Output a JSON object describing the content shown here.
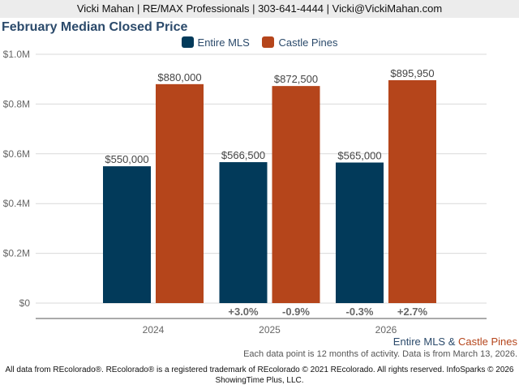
{
  "header": {
    "contact_line": "Vicki Mahan | RE/MAX Professionals | 303-641-4444 | Vicki@VickiMahan.com"
  },
  "colors": {
    "entire_mls": "#023a5a",
    "castle_pines": "#b5451b",
    "title": "#2b4a6b",
    "grid": "#d9d9d9",
    "axis_text": "#666666",
    "data_label": "#444444",
    "change_label": "#666666"
  },
  "chart_data": {
    "type": "bar",
    "title": "February Median Closed Price",
    "xlabel": "",
    "ylabel": "",
    "categories": [
      "2024",
      "2025",
      "2026"
    ],
    "ylim": [
      0,
      1000000
    ],
    "yticks": [
      {
        "value": 0,
        "label": "$0"
      },
      {
        "value": 200000,
        "label": "$0.2M"
      },
      {
        "value": 400000,
        "label": "$0.4M"
      },
      {
        "value": 600000,
        "label": "$0.6M"
      },
      {
        "value": 800000,
        "label": "$0.8M"
      },
      {
        "value": 1000000,
        "label": "$1.0M"
      }
    ],
    "grid": true,
    "legend_position": "top-center",
    "series": [
      {
        "name": "Entire MLS",
        "values": [
          550000,
          566500,
          565000
        ],
        "labels": [
          "$550,000",
          "$566,500",
          "$565,000"
        ],
        "changes": [
          null,
          "+3.0%",
          "-0.3%"
        ]
      },
      {
        "name": "Castle Pines",
        "values": [
          880000,
          872500,
          895950
        ],
        "labels": [
          "$880,000",
          "$872,500",
          "$895,950"
        ],
        "changes": [
          null,
          "-0.9%",
          "+2.7%"
        ]
      }
    ]
  },
  "source": {
    "series_a": "Entire MLS",
    "joiner": " & ",
    "series_b": "Castle Pines"
  },
  "note": "Each data point is 12 months of activity. Data is from March 13, 2026.",
  "footer": {
    "line1": "All data from REcolorado®. REcolorado® is a registered trademark of REcolorado © 2021 REcolorado. All rights reserved. InfoSparks © 2026",
    "line2": "ShowingTime Plus, LLC."
  }
}
